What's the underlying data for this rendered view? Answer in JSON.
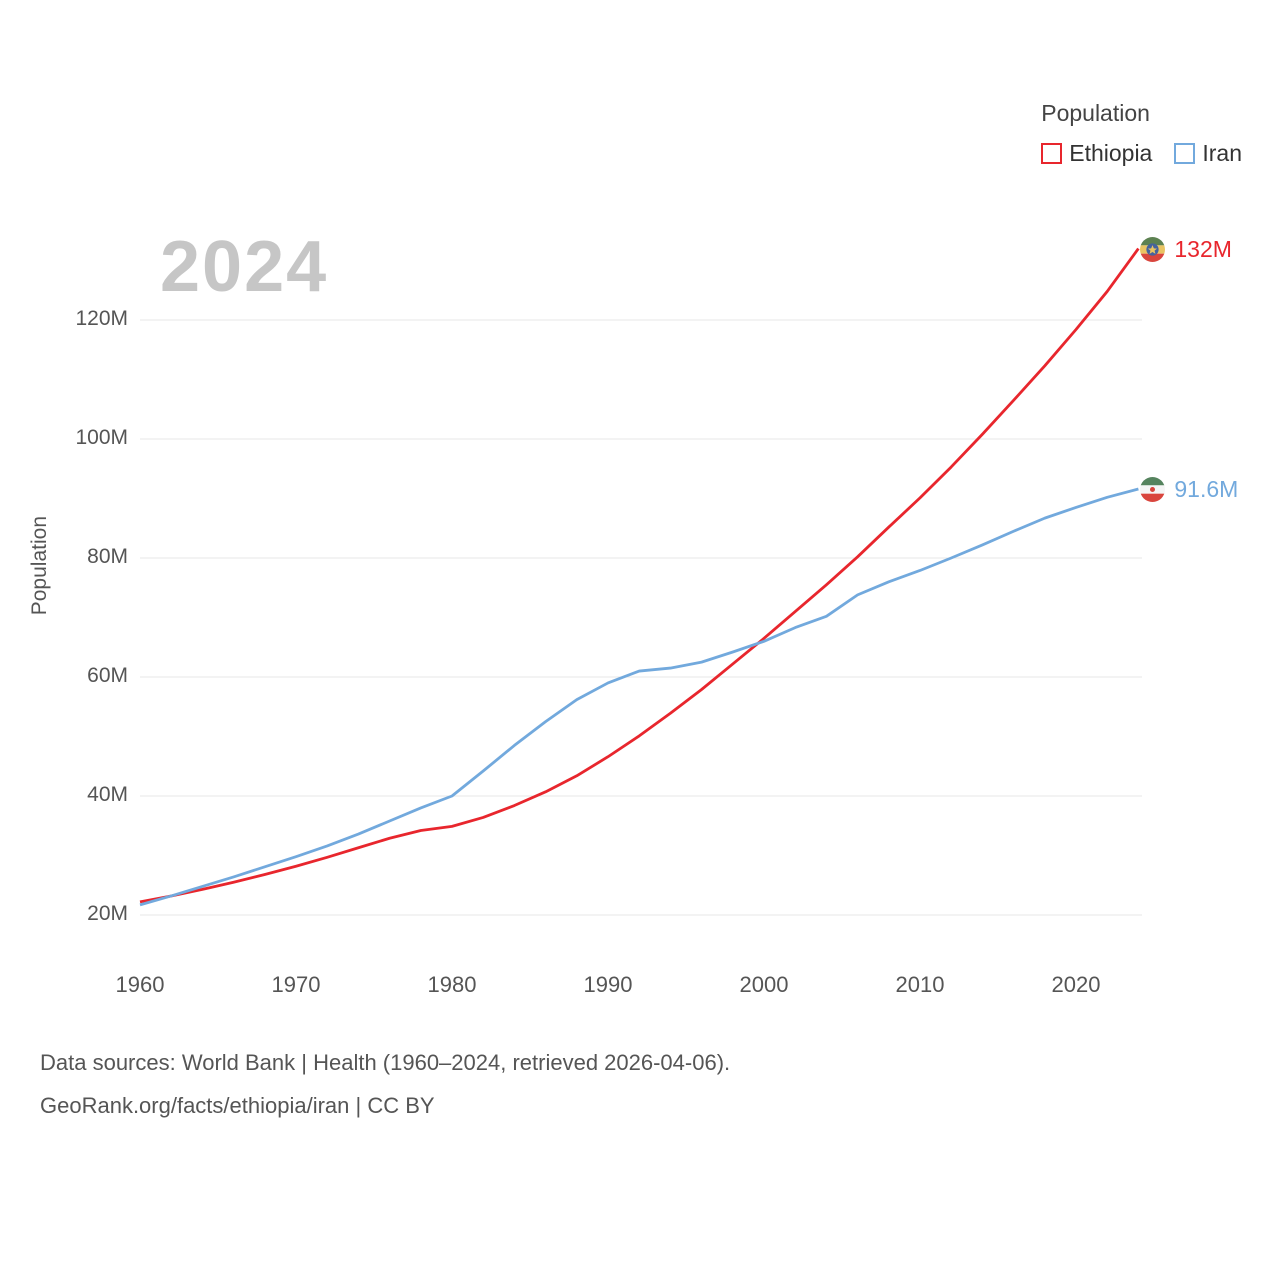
{
  "chart_data": {
    "type": "line",
    "watermark_year": "2024",
    "ylabel": "Population",
    "xlim": [
      1960,
      2024
    ],
    "ylim": [
      20,
      135
    ],
    "grid": "horizontal",
    "legend": {
      "title": "Population",
      "position": "top-right",
      "entries": [
        {
          "label": "Ethiopia",
          "color": "#e8262d"
        },
        {
          "label": "Iran",
          "color": "#72a9dd"
        }
      ]
    },
    "x": [
      1960,
      1962,
      1964,
      1966,
      1968,
      1970,
      1972,
      1974,
      1976,
      1978,
      1980,
      1982,
      1984,
      1986,
      1988,
      1990,
      1992,
      1994,
      1996,
      1998,
      2000,
      2002,
      2004,
      2006,
      2008,
      2010,
      2012,
      2014,
      2016,
      2018,
      2020,
      2022,
      2024
    ],
    "series": [
      {
        "name": "Ethiopia",
        "color": "#e8262d",
        "end_label": "132M",
        "values": [
          22.2,
          23.2,
          24.3,
          25.5,
          26.8,
          28.2,
          29.7,
          31.3,
          32.9,
          34.2,
          34.9,
          36.4,
          38.4,
          40.7,
          43.4,
          46.6,
          50.1,
          53.9,
          57.9,
          62.2,
          66.5,
          71.0,
          75.5,
          80.2,
          85.2,
          90.1,
          95.3,
          100.8,
          106.5,
          112.3,
          118.4,
          124.8,
          132.0
        ]
      },
      {
        "name": "Iran",
        "color": "#72a9dd",
        "end_label": "91.6M",
        "values": [
          21.7,
          23.2,
          24.8,
          26.4,
          28.1,
          29.8,
          31.6,
          33.6,
          35.8,
          38.0,
          40.0,
          44.2,
          48.5,
          52.5,
          56.2,
          59.0,
          61.0,
          61.5,
          62.5,
          64.2,
          66.0,
          68.3,
          70.2,
          73.8,
          76.0,
          77.9,
          80.0,
          82.2,
          84.5,
          86.7,
          88.5,
          90.2,
          91.6
        ]
      }
    ],
    "yticks": [
      {
        "value": 20,
        "label": "20M"
      },
      {
        "value": 40,
        "label": "40M"
      },
      {
        "value": 60,
        "label": "60M"
      },
      {
        "value": 80,
        "label": "80M"
      },
      {
        "value": 100,
        "label": "100M"
      },
      {
        "value": 120,
        "label": "120M"
      }
    ],
    "xticks": [
      {
        "value": 1960,
        "label": "1960"
      },
      {
        "value": 1970,
        "label": "1970"
      },
      {
        "value": 1980,
        "label": "1980"
      },
      {
        "value": 1990,
        "label": "1990"
      },
      {
        "value": 2000,
        "label": "2000"
      },
      {
        "value": 2010,
        "label": "2010"
      },
      {
        "value": 2020,
        "label": "2020"
      }
    ]
  },
  "icons": {
    "ethiopia_flag": "ethiopia-flag-icon",
    "iran_flag": "iran-flag-icon"
  },
  "footer": {
    "line1": "Data sources: World Bank | Health (1960–2024, retrieved 2026-04-06).",
    "line2": "GeoRank.org/facts/ethiopia/iran | CC BY"
  }
}
